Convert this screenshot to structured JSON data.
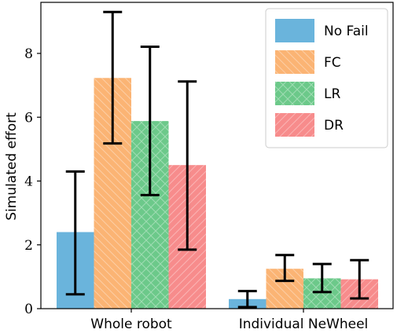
{
  "chart_data": {
    "type": "bar",
    "categories": [
      "Whole robot",
      "Individual NeWheel"
    ],
    "ylabel": "Simulated effort",
    "xlabel": "",
    "ylim": [
      0,
      9.6
    ],
    "yticks": [
      "0",
      "2",
      "4",
      "6",
      "8"
    ],
    "grid": false,
    "legend_position": "top-right",
    "series": [
      {
        "name": "No Fail",
        "values": [
          2.4,
          0.3
        ],
        "err_low": [
          0.45,
          0.05
        ],
        "err_high": [
          4.3,
          0.55
        ],
        "color": "#6ab4dc",
        "hatch": "none"
      },
      {
        "name": "FC",
        "values": [
          7.23,
          1.25
        ],
        "err_low": [
          5.18,
          0.87
        ],
        "err_high": [
          9.3,
          1.68
        ],
        "color": "#fbb474",
        "hatch": "back"
      },
      {
        "name": "LR",
        "values": [
          5.88,
          0.95
        ],
        "err_low": [
          3.56,
          0.52
        ],
        "err_high": [
          8.21,
          1.4
        ],
        "color": "#6cc98a",
        "hatch": "cross"
      },
      {
        "name": "DR",
        "values": [
          4.5,
          0.92
        ],
        "err_low": [
          1.85,
          0.32
        ],
        "err_high": [
          7.12,
          1.52
        ],
        "color": "#f78c8c",
        "hatch": "forward"
      }
    ]
  }
}
